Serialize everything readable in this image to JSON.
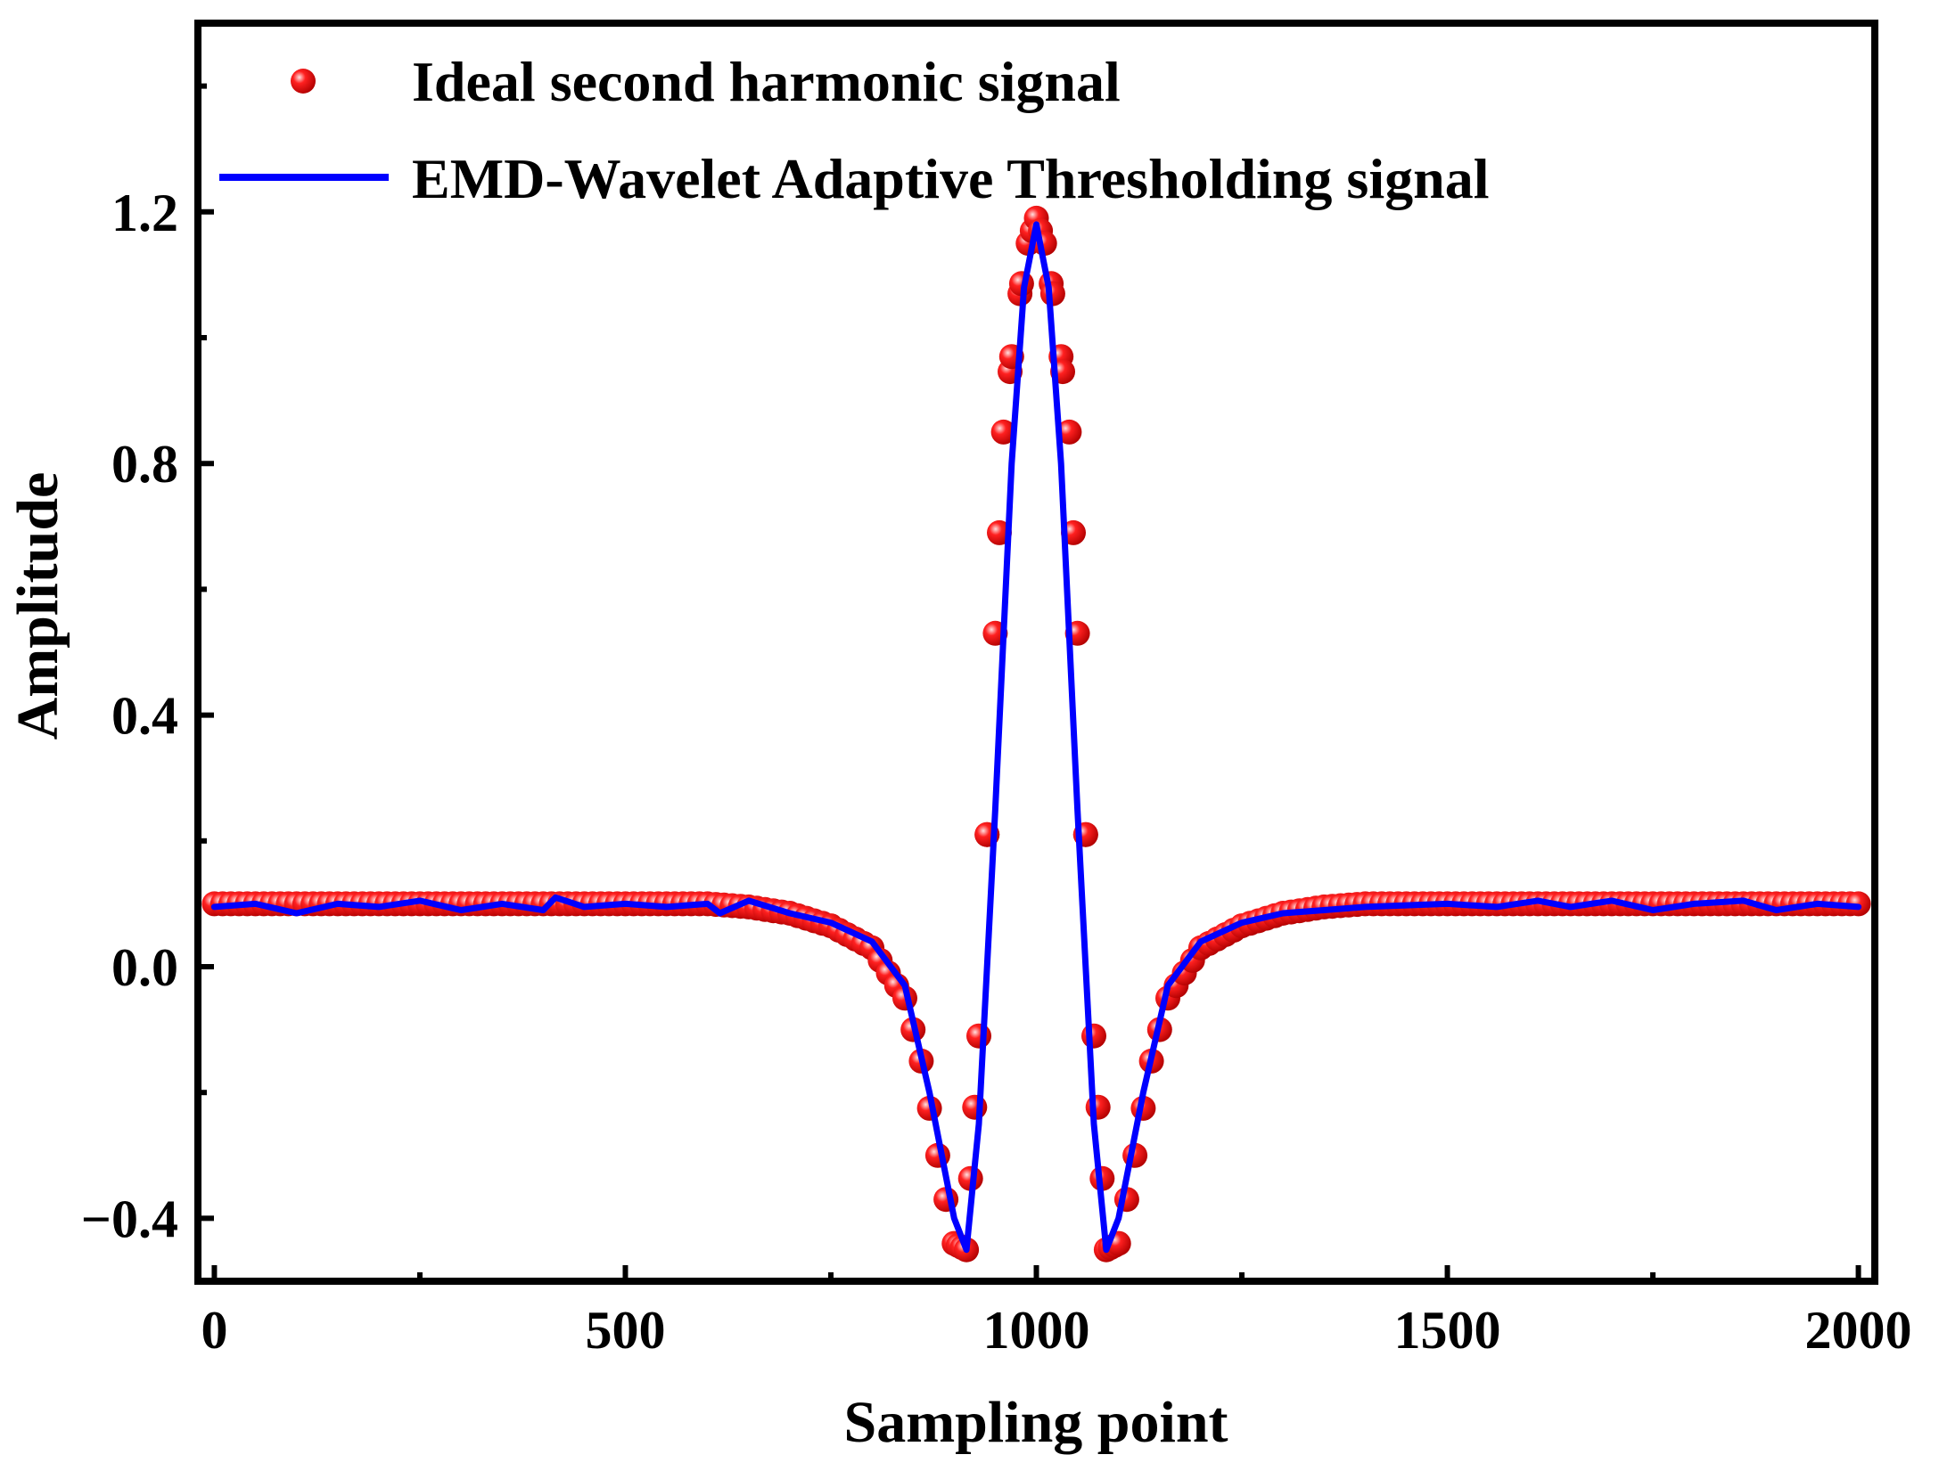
{
  "chart_data": {
    "type": "scatter",
    "title": "",
    "xlabel": "Sampling point",
    "ylabel": "Amplitude",
    "xlim": [
      -20,
      2020
    ],
    "ylim": [
      -0.5,
      1.5
    ],
    "x_ticks": [
      0,
      500,
      1000,
      1500,
      2000
    ],
    "x_tick_labels": [
      "0",
      "500",
      "1000",
      "1500",
      "2000"
    ],
    "y_ticks": [
      -0.4,
      0.0,
      0.4,
      0.8,
      1.2
    ],
    "y_tick_labels": [
      "−0.4",
      "0.0",
      "0.4",
      "0.8",
      "1.2"
    ],
    "grid": false,
    "legend_position": "top",
    "colors": {
      "ideal": "#ff0000",
      "emd": "#0000ff",
      "axis": "#000000"
    },
    "series": [
      {
        "name": "Ideal second harmonic signal",
        "style": "markers",
        "x": [
          0,
          100,
          200,
          300,
          400,
          500,
          600,
          650,
          700,
          750,
          800,
          840,
          860,
          880,
          900,
          915,
          930,
          945,
          960,
          975,
          990,
          1000,
          1010,
          1025,
          1040,
          1055,
          1070,
          1085,
          1100,
          1120,
          1140,
          1160,
          1200,
          1250,
          1300,
          1350,
          1400,
          1500,
          1600,
          1700,
          1800,
          1900,
          2000
        ],
        "y": [
          0.1,
          0.1,
          0.1,
          0.1,
          0.1,
          0.1,
          0.1,
          0.095,
          0.085,
          0.065,
          0.03,
          -0.05,
          -0.15,
          -0.3,
          -0.44,
          -0.45,
          -0.11,
          0.37,
          0.85,
          1.03,
          1.15,
          1.19,
          1.15,
          1.03,
          0.85,
          0.37,
          -0.11,
          -0.45,
          -0.44,
          -0.3,
          -0.15,
          -0.05,
          0.03,
          0.065,
          0.085,
          0.095,
          0.1,
          0.1,
          0.1,
          0.1,
          0.1,
          0.1,
          0.1
        ]
      },
      {
        "name": "EMD-Wavelet Adaptive Thresholding signal",
        "style": "line",
        "x": [
          0,
          50,
          100,
          150,
          200,
          250,
          300,
          350,
          400,
          415,
          450,
          500,
          550,
          600,
          615,
          650,
          700,
          750,
          800,
          840,
          870,
          900,
          915,
          930,
          950,
          970,
          985,
          1000,
          1015,
          1030,
          1050,
          1070,
          1085,
          1100,
          1130,
          1160,
          1200,
          1250,
          1300,
          1350,
          1400,
          1500,
          1560,
          1610,
          1650,
          1700,
          1750,
          1800,
          1860,
          1900,
          1950,
          2000
        ],
        "y": [
          0.095,
          0.1,
          0.085,
          0.1,
          0.095,
          0.105,
          0.09,
          0.1,
          0.09,
          0.11,
          0.095,
          0.1,
          0.095,
          0.1,
          0.085,
          0.105,
          0.085,
          0.07,
          0.04,
          -0.03,
          -0.2,
          -0.4,
          -0.45,
          -0.25,
          0.25,
          0.8,
          1.08,
          1.18,
          1.08,
          0.8,
          0.25,
          -0.25,
          -0.45,
          -0.4,
          -0.2,
          -0.03,
          0.04,
          0.07,
          0.085,
          0.09,
          0.095,
          0.1,
          0.095,
          0.105,
          0.095,
          0.105,
          0.09,
          0.1,
          0.105,
          0.09,
          0.1,
          0.095
        ]
      }
    ]
  }
}
